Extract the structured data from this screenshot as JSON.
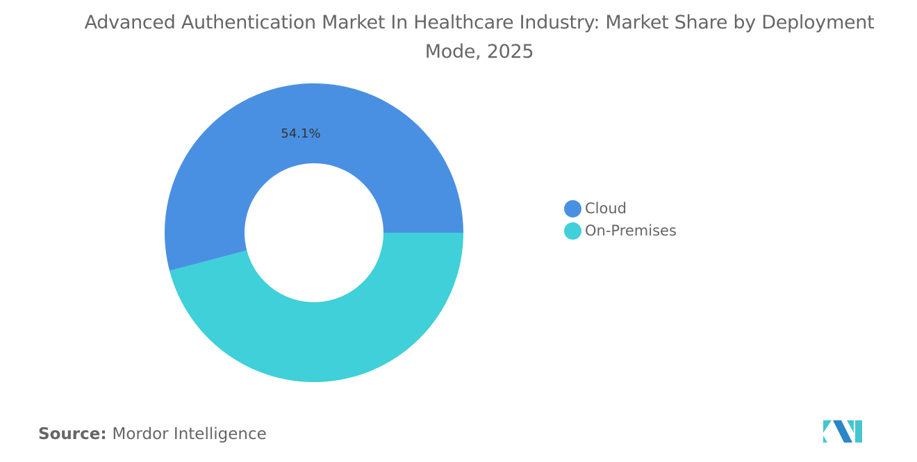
{
  "chart_data": {
    "type": "pie",
    "variant": "donut",
    "title": "Advanced Authentication Market In Healthcare Industry: Market Share by Deployment Mode, 2025",
    "categories": [
      "Cloud",
      "On-Premises"
    ],
    "values": [
      54.1,
      45.9
    ],
    "unit": "%",
    "data_labels": [
      "54.1%",
      ""
    ],
    "colors": [
      "#4A90E2",
      "#3FD0D9"
    ],
    "legend_position": "right"
  },
  "source": {
    "label": "Source:",
    "value": "Mordor Intelligence"
  },
  "logo": {
    "name": "mordor-intelligence-logo",
    "colors": [
      "#2A86C6",
      "#44C6D0"
    ]
  }
}
